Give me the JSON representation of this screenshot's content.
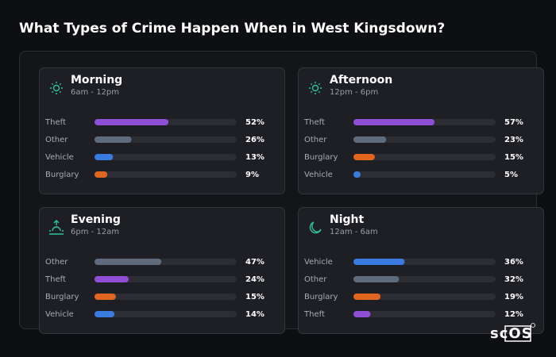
{
  "header": {
    "title": "What Types of Crime Happen When in West Kingsdown?"
  },
  "watermark": "scOS",
  "chart_data": [
    {
      "type": "bar",
      "title": "Morning",
      "subtitle": "6am - 12pm",
      "categories": [
        "Theft",
        "Other",
        "Vehicle",
        "Burglary"
      ],
      "values": [
        52,
        26,
        13,
        9
      ],
      "value_labels": [
        "52%",
        "26%",
        "13%",
        "9%"
      ],
      "colors": [
        "#8e4fd6",
        "#5f6b7d",
        "#3a7be0",
        "#e0651f"
      ],
      "xlim": [
        0,
        100
      ]
    },
    {
      "type": "bar",
      "title": "Afternoon",
      "subtitle": "12pm - 6pm",
      "categories": [
        "Theft",
        "Other",
        "Burglary",
        "Vehicle"
      ],
      "values": [
        57,
        23,
        15,
        5
      ],
      "value_labels": [
        "57%",
        "23%",
        "15%",
        "5%"
      ],
      "colors": [
        "#8e4fd6",
        "#5f6b7d",
        "#e0651f",
        "#3a7be0"
      ],
      "xlim": [
        0,
        100
      ]
    },
    {
      "type": "bar",
      "title": "Evening",
      "subtitle": "6pm - 12am",
      "categories": [
        "Other",
        "Theft",
        "Burglary",
        "Vehicle"
      ],
      "values": [
        47,
        24,
        15,
        14
      ],
      "value_labels": [
        "47%",
        "24%",
        "15%",
        "14%"
      ],
      "colors": [
        "#5f6b7d",
        "#8e4fd6",
        "#e0651f",
        "#3a7be0"
      ],
      "xlim": [
        0,
        100
      ]
    },
    {
      "type": "bar",
      "title": "Night",
      "subtitle": "12am - 6am",
      "categories": [
        "Vehicle",
        "Other",
        "Burglary",
        "Theft"
      ],
      "values": [
        36,
        32,
        19,
        12
      ],
      "value_labels": [
        "36%",
        "32%",
        "19%",
        "12%"
      ],
      "colors": [
        "#3a7be0",
        "#5f6b7d",
        "#e0651f",
        "#8e4fd6"
      ],
      "xlim": [
        0,
        100
      ]
    }
  ]
}
